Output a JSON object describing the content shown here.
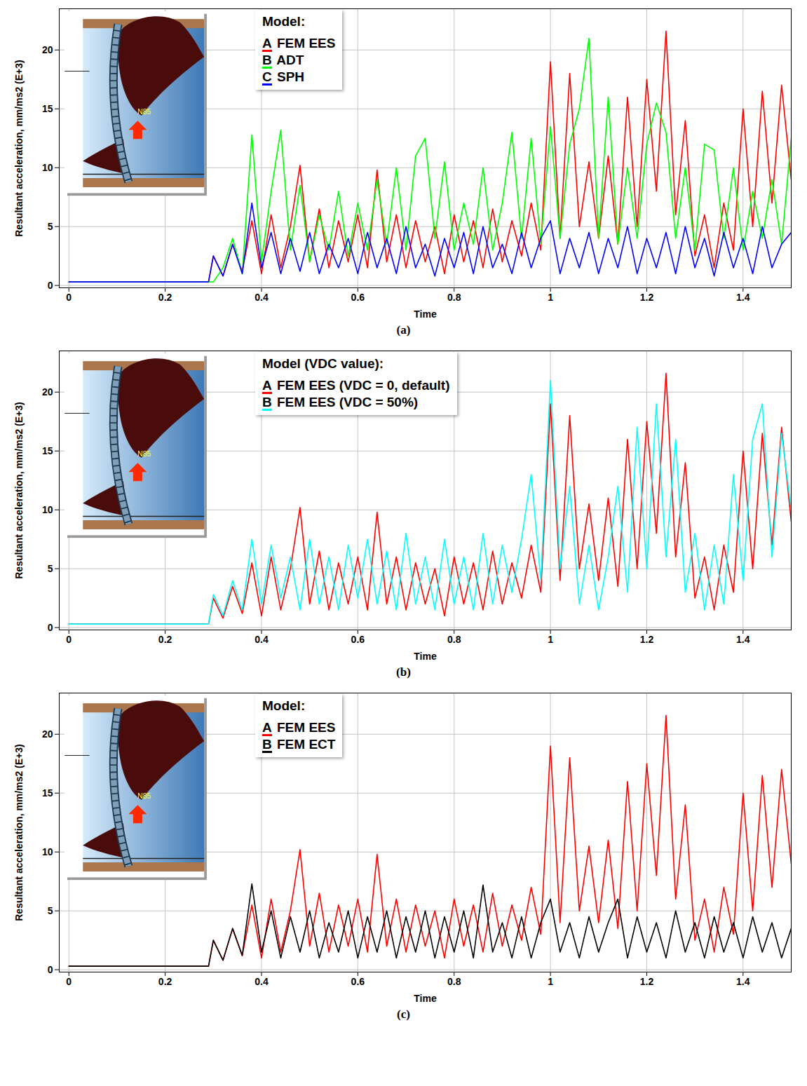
{
  "chart_data": [
    {
      "type": "line",
      "caption": "(a)",
      "inset_label": "N85",
      "legend_title": "Model:",
      "legend": "top",
      "x_label": "Time",
      "y_label": "Resultant acceleration, mm/ms2 (E+3)",
      "grid": true,
      "xlim": [
        -0.02,
        1.5
      ],
      "xticks": [
        0,
        0.2,
        0.4,
        0.6,
        0.8,
        1,
        1.2,
        1.4
      ],
      "ylim": [
        -0.2,
        23.5
      ],
      "yticks": [
        0,
        5,
        10,
        15,
        20
      ],
      "x": [
        0,
        0.1,
        0.2,
        0.29,
        0.3,
        0.32,
        0.34,
        0.36,
        0.38,
        0.4,
        0.42,
        0.44,
        0.46,
        0.48,
        0.5,
        0.52,
        0.54,
        0.56,
        0.58,
        0.6,
        0.62,
        0.64,
        0.66,
        0.68,
        0.7,
        0.72,
        0.74,
        0.76,
        0.78,
        0.8,
        0.82,
        0.84,
        0.86,
        0.88,
        0.9,
        0.92,
        0.94,
        0.96,
        0.98,
        1.0,
        1.02,
        1.04,
        1.06,
        1.08,
        1.1,
        1.12,
        1.14,
        1.16,
        1.18,
        1.2,
        1.22,
        1.24,
        1.26,
        1.28,
        1.3,
        1.32,
        1.34,
        1.36,
        1.38,
        1.4,
        1.42,
        1.44,
        1.46,
        1.48,
        1.5
      ],
      "series": [
        {
          "letter": "A",
          "name": "FEM EES",
          "color": "#ff0000",
          "values": [
            0.3,
            0.3,
            0.3,
            0.3,
            2.5,
            0.8,
            3.5,
            1.2,
            5.5,
            1.0,
            6.0,
            1.5,
            5.0,
            10.2,
            2.0,
            6.5,
            1.5,
            5.5,
            2.0,
            6.0,
            1.5,
            9.8,
            2.0,
            6.0,
            1.5,
            5.5,
            2.0,
            5.0,
            1.0,
            6.0,
            2.0,
            5.5,
            1.5,
            6.5,
            2.0,
            5.5,
            2.5,
            7.0,
            3.0,
            19.0,
            4.0,
            18.0,
            5.0,
            10.5,
            4.0,
            11.0,
            3.5,
            16.0,
            5.0,
            17.5,
            8.0,
            21.6,
            6.0,
            14.0,
            2.5,
            6.0,
            1.5,
            7.0,
            3.0,
            15.0,
            5.0,
            16.5,
            7.0,
            17.0,
            9.0
          ]
        },
        {
          "letter": "B",
          "name": "ADT",
          "color": "#00ff00",
          "values": [
            0.3,
            0.3,
            0.3,
            0.3,
            0.3,
            1.5,
            4.0,
            1.0,
            12.8,
            2.0,
            8.0,
            13.2,
            3.0,
            8.5,
            2.0,
            6.0,
            3.0,
            8.0,
            2.5,
            7.0,
            3.0,
            9.0,
            3.5,
            10.0,
            3.0,
            11.0,
            12.5,
            4.0,
            10.5,
            3.0,
            7.0,
            3.5,
            10.0,
            3.0,
            7.0,
            13.0,
            4.0,
            12.5,
            3.5,
            13.5,
            4.0,
            12.0,
            15.0,
            21.0,
            4.0,
            16.0,
            3.5,
            10.0,
            4.0,
            12.0,
            15.5,
            13.0,
            4.0,
            10.0,
            3.0,
            12.0,
            11.5,
            4.0,
            10.0,
            3.0,
            8.0,
            4.0,
            9.0,
            3.5,
            12.5
          ]
        },
        {
          "letter": "C",
          "name": "SPH",
          "color": "#0000ff",
          "values": [
            0.3,
            0.3,
            0.3,
            0.3,
            2.5,
            0.8,
            3.5,
            1.0,
            7.0,
            1.5,
            4.5,
            1.0,
            4.0,
            1.2,
            4.5,
            1.0,
            3.5,
            1.5,
            4.0,
            1.0,
            4.5,
            1.5,
            4.0,
            1.0,
            5.0,
            1.5,
            3.5,
            0.8,
            4.0,
            1.5,
            4.5,
            1.0,
            5.0,
            1.5,
            3.5,
            1.0,
            4.5,
            1.5,
            4.0,
            5.5,
            1.0,
            4.0,
            1.5,
            4.5,
            1.0,
            4.0,
            1.5,
            5.0,
            1.0,
            4.0,
            1.5,
            4.5,
            1.0,
            5.0,
            1.5,
            4.0,
            0.8,
            4.5,
            1.5,
            4.0,
            1.0,
            5.0,
            1.5,
            3.5,
            4.5
          ]
        }
      ]
    },
    {
      "type": "line",
      "caption": "(b)",
      "inset_label": "N85",
      "legend_title": "Model (VDC value):",
      "legend": "top",
      "x_label": "Time",
      "y_label": "Resultant acceleration, mm/ms2 (E+3)",
      "grid": true,
      "xlim": [
        -0.02,
        1.5
      ],
      "xticks": [
        0,
        0.2,
        0.4,
        0.6,
        0.8,
        1,
        1.2,
        1.4
      ],
      "ylim": [
        -0.2,
        23.5
      ],
      "yticks": [
        0,
        5,
        10,
        15,
        20
      ],
      "x": [
        0,
        0.1,
        0.2,
        0.29,
        0.3,
        0.32,
        0.34,
        0.36,
        0.38,
        0.4,
        0.42,
        0.44,
        0.46,
        0.48,
        0.5,
        0.52,
        0.54,
        0.56,
        0.58,
        0.6,
        0.62,
        0.64,
        0.66,
        0.68,
        0.7,
        0.72,
        0.74,
        0.76,
        0.78,
        0.8,
        0.82,
        0.84,
        0.86,
        0.88,
        0.9,
        0.92,
        0.94,
        0.96,
        0.98,
        1.0,
        1.02,
        1.04,
        1.06,
        1.08,
        1.1,
        1.12,
        1.14,
        1.16,
        1.18,
        1.2,
        1.22,
        1.24,
        1.26,
        1.28,
        1.3,
        1.32,
        1.34,
        1.36,
        1.38,
        1.4,
        1.42,
        1.44,
        1.46,
        1.48,
        1.5
      ],
      "series": [
        {
          "letter": "A",
          "name": "FEM EES (VDC = 0, default)",
          "color": "#ff0000",
          "values": [
            0.3,
            0.3,
            0.3,
            0.3,
            2.5,
            0.8,
            3.5,
            1.2,
            5.5,
            1.0,
            6.0,
            1.5,
            5.0,
            10.2,
            2.0,
            6.5,
            1.5,
            5.5,
            2.0,
            6.0,
            1.5,
            9.8,
            2.0,
            6.0,
            1.5,
            5.5,
            2.0,
            5.0,
            1.0,
            6.0,
            2.0,
            5.5,
            1.5,
            6.5,
            2.0,
            5.5,
            2.5,
            7.0,
            3.0,
            19.0,
            4.0,
            18.0,
            5.0,
            10.5,
            4.0,
            11.0,
            3.5,
            16.0,
            5.0,
            17.5,
            8.0,
            21.6,
            6.0,
            14.0,
            2.5,
            6.0,
            1.5,
            7.0,
            3.0,
            15.0,
            5.0,
            16.5,
            7.0,
            17.0,
            9.0
          ]
        },
        {
          "letter": "B",
          "name": "FEM EES (VDC = 50%)",
          "color": "#00ffff",
          "values": [
            0.3,
            0.3,
            0.3,
            0.3,
            2.8,
            1.0,
            4.0,
            1.5,
            7.5,
            2.0,
            7.0,
            2.5,
            6.0,
            1.5,
            7.5,
            2.0,
            6.0,
            1.5,
            7.0,
            2.5,
            7.5,
            2.0,
            6.5,
            1.5,
            8.0,
            2.0,
            6.0,
            1.5,
            7.5,
            2.0,
            6.0,
            1.5,
            8.0,
            2.0,
            7.0,
            3.0,
            7.5,
            13.0,
            4.0,
            21.0,
            5.0,
            12.0,
            2.0,
            7.0,
            1.5,
            6.0,
            12.0,
            3.0,
            17.0,
            5.0,
            19.0,
            6.0,
            16.0,
            3.0,
            8.0,
            1.5,
            7.0,
            2.0,
            13.0,
            4.0,
            16.0,
            19.0,
            6.0,
            16.5,
            10.0
          ]
        }
      ]
    },
    {
      "type": "line",
      "caption": "(c)",
      "inset_label": "N85",
      "legend_title": "Model:",
      "legend": "top",
      "x_label": "Time",
      "y_label": "Resultant acceleration, mm/ms2 (E+3)",
      "grid": true,
      "xlim": [
        -0.02,
        1.5
      ],
      "xticks": [
        0,
        0.2,
        0.4,
        0.6,
        0.8,
        1,
        1.2,
        1.4
      ],
      "ylim": [
        -0.2,
        23.5
      ],
      "yticks": [
        0,
        5,
        10,
        15,
        20
      ],
      "x": [
        0,
        0.1,
        0.2,
        0.29,
        0.3,
        0.32,
        0.34,
        0.36,
        0.38,
        0.4,
        0.42,
        0.44,
        0.46,
        0.48,
        0.5,
        0.52,
        0.54,
        0.56,
        0.58,
        0.6,
        0.62,
        0.64,
        0.66,
        0.68,
        0.7,
        0.72,
        0.74,
        0.76,
        0.78,
        0.8,
        0.82,
        0.84,
        0.86,
        0.88,
        0.9,
        0.92,
        0.94,
        0.96,
        0.98,
        1.0,
        1.02,
        1.04,
        1.06,
        1.08,
        1.1,
        1.12,
        1.14,
        1.16,
        1.18,
        1.2,
        1.22,
        1.24,
        1.26,
        1.28,
        1.3,
        1.32,
        1.34,
        1.36,
        1.38,
        1.4,
        1.42,
        1.44,
        1.46,
        1.48,
        1.5
      ],
      "series": [
        {
          "letter": "A",
          "name": "FEM EES",
          "color": "#ff0000",
          "values": [
            0.3,
            0.3,
            0.3,
            0.3,
            2.5,
            0.8,
            3.5,
            1.2,
            5.5,
            1.0,
            6.0,
            1.5,
            5.0,
            10.2,
            2.0,
            6.5,
            1.5,
            5.5,
            2.0,
            6.0,
            1.5,
            9.8,
            2.0,
            6.0,
            1.5,
            5.5,
            2.0,
            5.0,
            1.0,
            6.0,
            2.0,
            5.5,
            1.5,
            6.5,
            2.0,
            5.5,
            2.5,
            7.0,
            3.0,
            19.0,
            4.0,
            18.0,
            5.0,
            10.5,
            4.0,
            11.0,
            3.5,
            16.0,
            5.0,
            17.5,
            8.0,
            21.6,
            6.0,
            14.0,
            2.5,
            6.0,
            1.5,
            7.0,
            3.0,
            15.0,
            5.0,
            16.5,
            7.0,
            17.0,
            9.0
          ]
        },
        {
          "letter": "B",
          "name": "FEM ECT",
          "color": "#000000",
          "values": [
            0.3,
            0.3,
            0.3,
            0.3,
            2.5,
            0.8,
            3.5,
            1.2,
            7.3,
            1.5,
            5.0,
            1.0,
            4.5,
            1.5,
            5.0,
            1.0,
            4.0,
            1.5,
            5.0,
            1.0,
            4.5,
            1.5,
            5.0,
            1.0,
            4.5,
            1.5,
            5.0,
            1.0,
            4.5,
            1.5,
            5.0,
            1.0,
            7.2,
            1.5,
            4.0,
            1.0,
            4.5,
            1.0,
            4.0,
            6.0,
            1.5,
            4.0,
            1.0,
            4.5,
            1.5,
            4.0,
            6.0,
            1.0,
            4.5,
            1.5,
            4.0,
            1.0,
            5.0,
            1.5,
            4.0,
            1.0,
            4.5,
            1.5,
            4.0,
            1.0,
            4.5,
            1.5,
            4.0,
            1.0,
            3.5
          ]
        }
      ]
    }
  ]
}
